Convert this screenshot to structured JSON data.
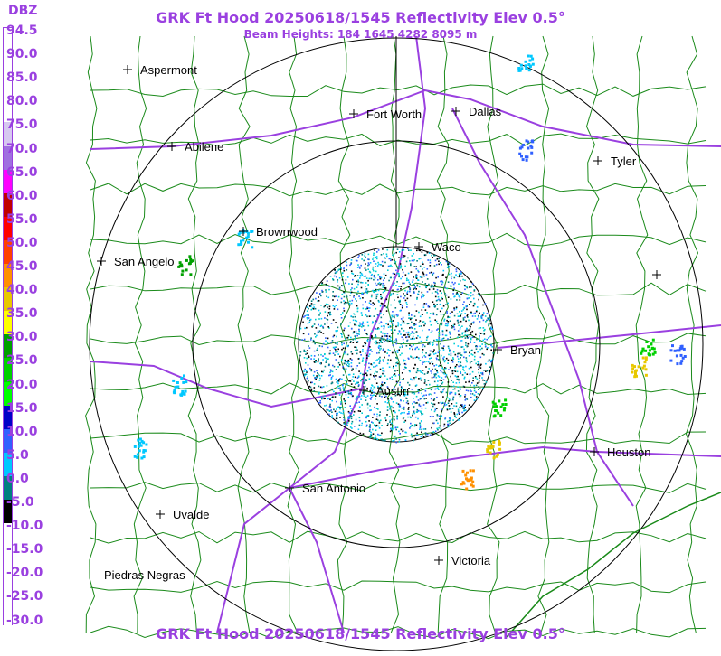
{
  "map": {
    "title": "GRK Ft Hood 20250618/1545 Reflectivity Elev 0.5°",
    "subtitle": "Beam Heights: 184 1645 4282 8095 m",
    "bottom_title": "GRK Ft Hood 20250618/1545 Reflectivity Elev 0.5°"
  },
  "legend": {
    "title": "DBZ",
    "levels": [
      {
        "label": "94.5",
        "color": "#ffffff"
      },
      {
        "label": "90.0",
        "color": "#ffffff"
      },
      {
        "label": "85.0",
        "color": "#ffffff"
      },
      {
        "label": "80.0",
        "color": "#ffffff"
      },
      {
        "label": "75.0",
        "color": "#d6c8f0"
      },
      {
        "label": "70.0",
        "color": "#a070e0"
      },
      {
        "label": "65.0",
        "color": "#ff00ff"
      },
      {
        "label": "60.0",
        "color": "#c00000"
      },
      {
        "label": "55.0",
        "color": "#ff0000"
      },
      {
        "label": "50.0",
        "color": "#ff4000"
      },
      {
        "label": "45.0",
        "color": "#ff9000"
      },
      {
        "label": "40.0",
        "color": "#e8c800"
      },
      {
        "label": "35.0",
        "color": "#ffff00"
      },
      {
        "label": "30.0",
        "color": "#00a000"
      },
      {
        "label": "25.0",
        "color": "#00d000"
      },
      {
        "label": "20.0",
        "color": "#00ff00"
      },
      {
        "label": "15.0",
        "color": "#0000c8"
      },
      {
        "label": "10.0",
        "color": "#3060ff"
      },
      {
        "label": "5.0",
        "color": "#00c8ff"
      },
      {
        "label": "0.0",
        "color": "#008080"
      },
      {
        "label": "-5.0",
        "color": "#000000"
      },
      {
        "label": "-10.0",
        "color": "#ffffff"
      },
      {
        "label": "-15.0",
        "color": "#ffffff"
      },
      {
        "label": "-20.0",
        "color": "#ffffff"
      },
      {
        "label": "-25.0",
        "color": "#ffffff"
      },
      {
        "label": "-30.0",
        "color": "#ffffff"
      }
    ]
  },
  "cities": [
    {
      "name": "Aspermont"
    },
    {
      "name": "Fort Worth"
    },
    {
      "name": "Dallas"
    },
    {
      "name": "Abilene"
    },
    {
      "name": "Tyler"
    },
    {
      "name": "Brownwood"
    },
    {
      "name": "Waco"
    },
    {
      "name": "San Angelo"
    },
    {
      "name": "Bryan"
    },
    {
      "name": "Austin"
    },
    {
      "name": "Houston"
    },
    {
      "name": "San Antonio"
    },
    {
      "name": "Uvalde"
    },
    {
      "name": "Victoria"
    },
    {
      "name": "Piedras Negras"
    },
    {
      "name": ""
    }
  ],
  "colors": {
    "title": "#9a40e0",
    "county_lines": "#1a8a1a",
    "highways": "#9a40e0",
    "range_rings": "#000000"
  }
}
